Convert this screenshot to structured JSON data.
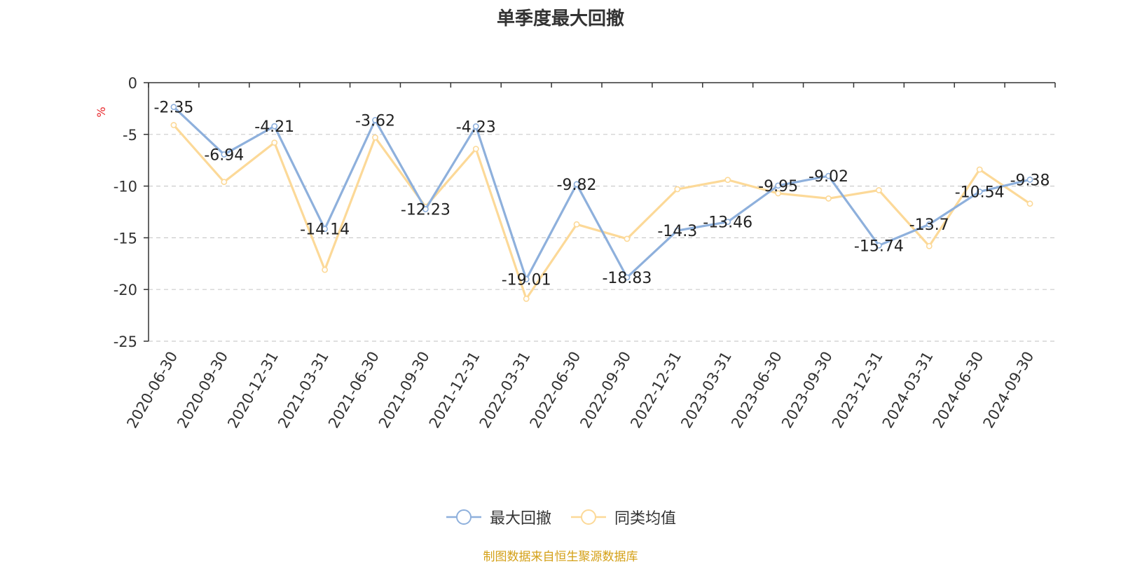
{
  "chart_data": {
    "type": "line",
    "title": "单季度最大回撤",
    "ylabel": "%",
    "xlabel": "",
    "ylim": [
      -25,
      0
    ],
    "yticks": [
      0,
      -5,
      -10,
      -15,
      -20,
      -25
    ],
    "grid": true,
    "legend_position": "bottom",
    "categories": [
      "2020-06-30",
      "2020-09-30",
      "2020-12-31",
      "2021-03-31",
      "2021-06-30",
      "2021-09-30",
      "2021-12-31",
      "2022-03-31",
      "2022-06-30",
      "2022-09-30",
      "2022-12-31",
      "2023-03-31",
      "2023-06-30",
      "2023-09-30",
      "2023-12-31",
      "2024-03-31",
      "2024-06-30",
      "2024-09-30"
    ],
    "series": [
      {
        "name": "最大回撤",
        "color": "#8eb0dc",
        "show_labels": true,
        "values": [
          -2.35,
          -6.94,
          -4.21,
          -14.14,
          -3.62,
          -12.23,
          -4.23,
          -19.01,
          -9.82,
          -18.83,
          -14.3,
          -13.46,
          -9.95,
          -9.02,
          -15.74,
          -13.7,
          -10.54,
          -9.38
        ]
      },
      {
        "name": "同类均值",
        "color": "#fcd998",
        "show_labels": false,
        "values": [
          -4.1,
          -9.6,
          -5.8,
          -18.1,
          -5.3,
          -12.0,
          -6.4,
          -20.9,
          -13.7,
          -15.1,
          -10.3,
          -9.4,
          -10.7,
          -11.2,
          -10.4,
          -15.8,
          -8.4,
          -11.7
        ]
      }
    ]
  },
  "source_note": "制图数据来自恒生聚源数据库"
}
